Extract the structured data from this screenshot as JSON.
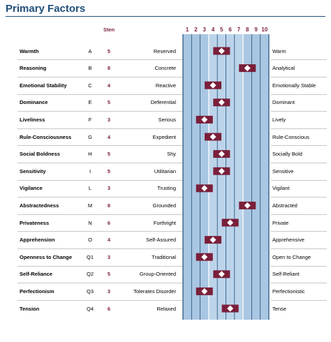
{
  "title": "Primary Factors",
  "sten_header": "Sten",
  "scale": [
    "1",
    "2",
    "3",
    "4",
    "5",
    "6",
    "7",
    "8",
    "9",
    "10"
  ],
  "colors": {
    "accent": "#7a1f3a",
    "band": "#a9c6e2",
    "band_dark": "#8fb3d6",
    "line": "#1f4e79"
  },
  "factors": [
    {
      "name": "Warmth",
      "code": "A",
      "sten": "5",
      "low": "Reserved",
      "high": "Warm"
    },
    {
      "name": "Reasoning",
      "code": "B",
      "sten": "8",
      "low": "Concrete",
      "high": "Analytical"
    },
    {
      "name": "Emotional Stability",
      "code": "C",
      "sten": "4",
      "low": "Reactive",
      "high": "Emotionally Stable"
    },
    {
      "name": "Dominance",
      "code": "E",
      "sten": "5",
      "low": "Deferential",
      "high": "Dominant"
    },
    {
      "name": "Liveliness",
      "code": "F",
      "sten": "3",
      "low": "Serious",
      "high": "Lively"
    },
    {
      "name": "Rule-Consciousness",
      "code": "G",
      "sten": "4",
      "low": "Expedient",
      "high": "Rule-Conscious"
    },
    {
      "name": "Social Boldness",
      "code": "H",
      "sten": "5",
      "low": "Shy",
      "high": "Socially Bold"
    },
    {
      "name": "Sensitivity",
      "code": "I",
      "sten": "5",
      "low": "Utilitarian",
      "high": "Sensitive"
    },
    {
      "name": "Vigilance",
      "code": "L",
      "sten": "3",
      "low": "Trusting",
      "high": "Vigilant"
    },
    {
      "name": "Abstractedness",
      "code": "M",
      "sten": "8",
      "low": "Grounded",
      "high": "Abstracted"
    },
    {
      "name": "Privateness",
      "code": "N",
      "sten": "6",
      "low": "Forthright",
      "high": "Private"
    },
    {
      "name": "Apprehension",
      "code": "O",
      "sten": "4",
      "low": "Self-Assured",
      "high": "Apprehensive"
    },
    {
      "name": "Openness to Change",
      "code": "Q1",
      "sten": "3",
      "low": "Traditional",
      "high": "Open to Change"
    },
    {
      "name": "Self-Reliance",
      "code": "Q2",
      "sten": "5",
      "low": "Group-Oriented",
      "high": "Self-Reliant"
    },
    {
      "name": "Perfectionism",
      "code": "Q3",
      "sten": "3",
      "low": "Tolerates Disorder",
      "high": "Perfectionistic"
    },
    {
      "name": "Tension",
      "code": "Q4",
      "sten": "6",
      "low": "Relaxed",
      "high": "Tense"
    }
  ]
}
